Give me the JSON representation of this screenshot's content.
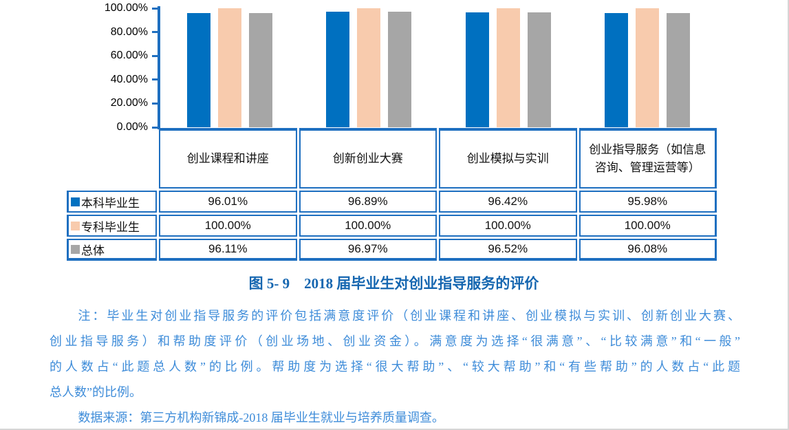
{
  "chart_data": {
    "type": "bar",
    "title": "图 5- 9　2018 届毕业生对创业指导服务的评价",
    "categories": [
      "创业课程和讲座",
      "创新创业大赛",
      "创业模拟与实训",
      "创业指导服务（如信息咨询、管理运营等）"
    ],
    "series": [
      {
        "name": "本科毕业生",
        "color": "#0070C0",
        "values": [
          96.01,
          96.89,
          96.42,
          95.98
        ]
      },
      {
        "name": "专科毕业生",
        "color": "#F8CBAD",
        "values": [
          100.0,
          100.0,
          100.0,
          100.0
        ]
      },
      {
        "name": "总体",
        "color": "#A6A6A6",
        "values": [
          96.11,
          96.97,
          96.52,
          96.08
        ]
      }
    ],
    "xlabel": "",
    "ylabel": "",
    "ylim": [
      0,
      100
    ],
    "yticks": [
      "100.00%",
      "80.00%",
      "60.00%",
      "40.00%",
      "20.00%",
      "0.00%"
    ],
    "value_format": "0.00%",
    "grid": false,
    "legend_position": "table-rows-left",
    "data_table_shown": true
  },
  "caption": {
    "text": "图 5- 9　2018 届毕业生对创业指导服务的评价"
  },
  "note": {
    "lines": [
      "注：毕业生对创业指导服务的评价包括满意度评价（创业课程和讲座、创业模拟与实训、创新创业大赛、",
      "创业指导服务）和帮助度评价（创业场地、创业资金）。满意度为选择“很满意”、“比较满意”和“一般”",
      "的人数占“此题总人数”的比例。帮助度为选择“很大帮助”、“较大帮助”和“有些帮助”的人数占“此题",
      "总人数”的比例。"
    ],
    "source": "数据来源：第三方机构新锦成-2018 届毕业生就业与培养质量调查。"
  },
  "colors": {
    "axis_and_table_border": "#1E6FC0",
    "caption_text": "#1566B0",
    "note_text": "#3E8CD9",
    "body_text": "#111111",
    "bar_undergraduate": "#0070C0",
    "bar_college": "#F8CBAD",
    "bar_overall": "#A6A6A6"
  }
}
